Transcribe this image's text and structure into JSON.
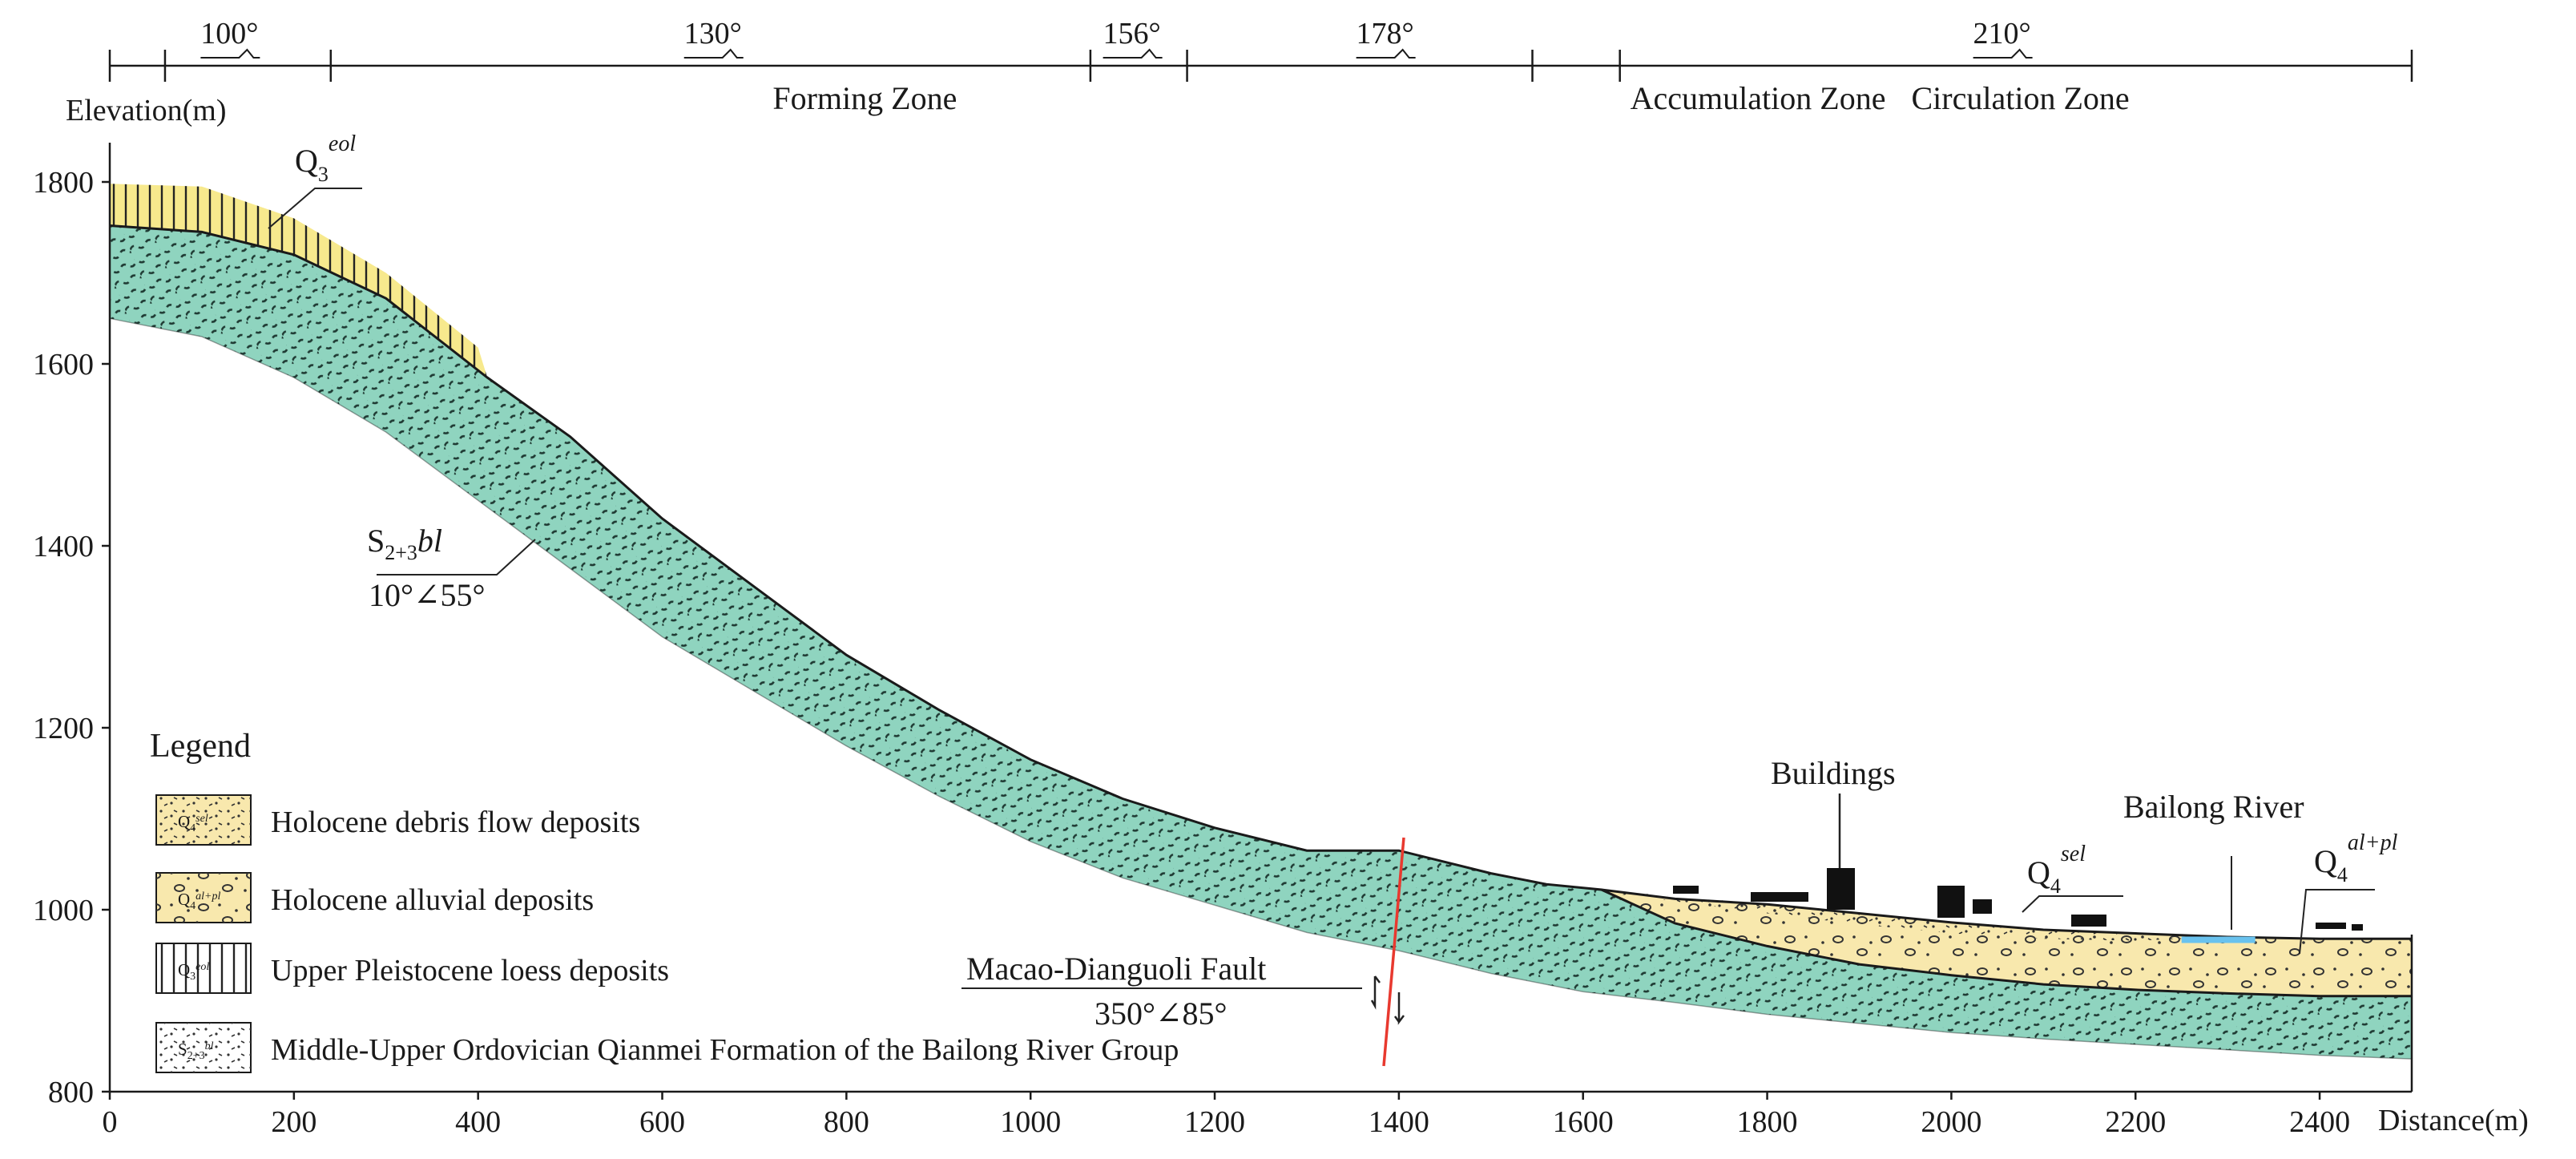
{
  "colors": {
    "bedrock": "#8fd4bf",
    "sediment": "#f8e8ad",
    "loess": "#f7e98d",
    "fault": "#e8392f",
    "river": "#69c2ee",
    "line": "#1a1a1a"
  },
  "axes": {
    "y_label": "Elevation(m)",
    "x_label": "Distance(m)",
    "y_ticks": [
      "800",
      "1000",
      "1200",
      "1400",
      "1600",
      "1800"
    ],
    "x_ticks": [
      "0",
      "200",
      "400",
      "600",
      "800",
      "1000",
      "1200",
      "1400",
      "1600",
      "1800",
      "2000",
      "2200",
      "2400"
    ]
  },
  "slope_angles": [
    {
      "label": "100°",
      "at_m": 130
    },
    {
      "label": "130°",
      "at_m": 655
    },
    {
      "label": "156°",
      "at_m": 1110
    },
    {
      "label": "178°",
      "at_m": 1385
    },
    {
      "label": "210°",
      "at_m": 2055
    }
  ],
  "zones": [
    {
      "name": "Forming Zone",
      "center_m": 820
    },
    {
      "name": "Accumulation Zone",
      "center_m": 1790
    },
    {
      "name": "Circulation Zone",
      "center_m": 2075
    }
  ],
  "labels": {
    "loess": {
      "base": "Q",
      "sub": "3",
      "sup": "eol"
    },
    "bedrock": {
      "base": "S",
      "sub": "2+3",
      "ital": "bl",
      "attitude": "10°∠55°"
    },
    "debris": {
      "base": "Q",
      "sub": "4",
      "sup": "sel"
    },
    "alluvial": {
      "base": "Q",
      "sub": "4",
      "sup": "al+pl"
    },
    "buildings": "Buildings",
    "river": "Bailong River",
    "fault_name": "Macao-Dianguoli Fault",
    "fault_attitude": "350°∠85°"
  },
  "legend": {
    "title": "Legend",
    "items": [
      {
        "code": "Q",
        "code_sub": "4",
        "code_sup": "sel",
        "desc": "Holocene debris flow deposits"
      },
      {
        "code": "Q",
        "code_sub": "4",
        "code_sup": "al+pl",
        "desc": "Holocene alluvial deposits"
      },
      {
        "code": "Q",
        "code_sub": "3",
        "code_sup": "eol",
        "desc": "Upper Pleistocene loess deposits"
      },
      {
        "code": "S",
        "code_sub": "2+3",
        "code_sup": "bl",
        "desc": "Middle-Upper Ordovician Qianmei Formation of the Bailong River Group"
      }
    ]
  }
}
